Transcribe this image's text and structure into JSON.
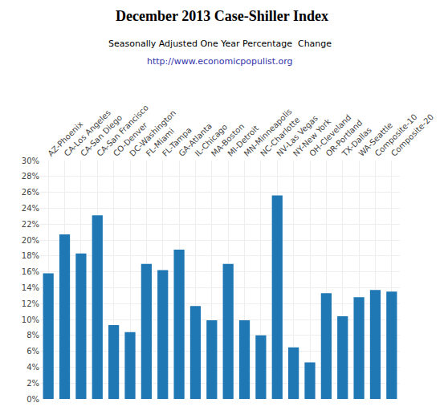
{
  "chart_data": {
    "type": "bar",
    "title": "December 2013 Case-Shiller Index",
    "subtitle": "Seasonally Adjusted One Year Percentage  Change",
    "annotations": [
      "http://www.economicpopulist.org"
    ],
    "categories": [
      "AZ-Phoenix",
      "CA-Los Angeles",
      "CA-San Diego",
      "CA-San Francisco",
      "CO-Denver",
      "DC-Washington",
      "FL-Miami",
      "FL-Tampa",
      "GA-Atlanta",
      "IL-Chicago",
      "MA-Boston",
      "MI-Detroit",
      "MN-Minneapolis",
      "NC-Charlotte",
      "NV-Las Vegas",
      "NY-New York",
      "OH-Cleveland",
      "OR-Portland",
      "TX-Dallas",
      "WA-Seattle",
      "Composite-10",
      "Composite-20"
    ],
    "values": [
      15.8,
      20.7,
      18.3,
      23.1,
      9.3,
      8.4,
      17.0,
      16.2,
      18.8,
      11.7,
      9.9,
      17.0,
      9.9,
      8.0,
      25.6,
      6.5,
      4.6,
      13.3,
      10.4,
      12.8,
      13.7,
      13.5
    ],
    "ylim": [
      0,
      30
    ],
    "yticks": [
      {
        "value": 0,
        "label": "0%"
      },
      {
        "value": 2,
        "label": "2%"
      },
      {
        "value": 4,
        "label": "4%"
      },
      {
        "value": 6,
        "label": "6%"
      },
      {
        "value": 8,
        "label": "8%"
      },
      {
        "value": 10,
        "label": "10%"
      },
      {
        "value": 12,
        "label": "12%"
      },
      {
        "value": 14,
        "label": "14%"
      },
      {
        "value": 16,
        "label": "16%"
      },
      {
        "value": 18,
        "label": "18%"
      },
      {
        "value": 20,
        "label": "20%"
      },
      {
        "value": 22,
        "label": "22%"
      },
      {
        "value": 24,
        "label": "24%"
      },
      {
        "value": 26,
        "label": "26%"
      },
      {
        "value": 28,
        "label": "28%"
      },
      {
        "value": 30,
        "label": "30%"
      }
    ],
    "grid": true
  }
}
